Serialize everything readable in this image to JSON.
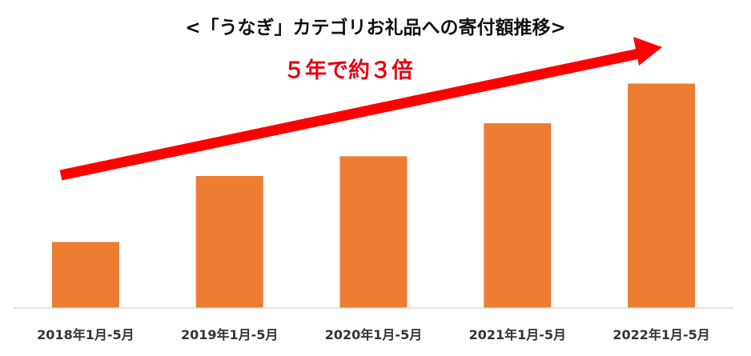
{
  "chart_data": {
    "type": "bar",
    "title": "<「うなぎ」カテゴリお礼品への寄付額推移>",
    "annotation": "５年で約３倍",
    "categories": [
      "2018年1月-5月",
      "2019年1月-5月",
      "2020年1月-5月",
      "2021年1月-5月",
      "2022年1月-5月"
    ],
    "values": [
      1.0,
      2.0,
      2.3,
      2.8,
      3.4
    ],
    "xlabel": "",
    "ylabel": "",
    "ylim": [
      0,
      3.6
    ],
    "grid": false,
    "legend": "none",
    "colors": {
      "bar": "#ED7D31",
      "arrow": "#FF0000",
      "annotation": "#E60012",
      "axis": "#D9D9D9"
    }
  }
}
